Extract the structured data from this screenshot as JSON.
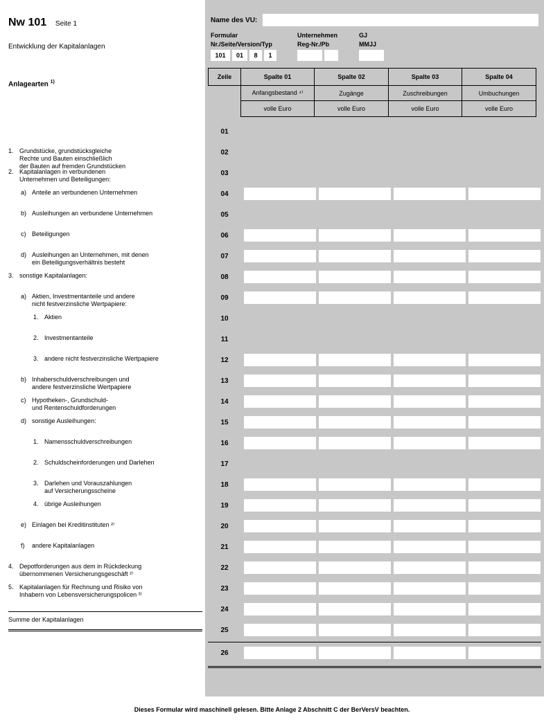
{
  "title": {
    "nw": "Nw 101",
    "seite": "Seite 1"
  },
  "subtitle": "Entwicklung der Kapitalanlagen",
  "anlagearten_label": "Anlagearten",
  "anlagearten_sup": "1)",
  "header": {
    "vu_label": "Name des VU:",
    "formular_label": "Formular",
    "formular_sub": "Nr./Seite/Version/Typ",
    "formular_vals": [
      "101",
      "01",
      "8",
      "1"
    ],
    "unternehmen_label": "Unternehmen",
    "unternehmen_sub": "Reg-Nr./Pb",
    "gj_label": "GJ",
    "gj_sub": "MMJJ"
  },
  "columns": {
    "zeile": "Zeile",
    "sp": [
      "Spalte 01",
      "Spalte 02",
      "Spalte 03",
      "Spalte 04"
    ],
    "sub": [
      "Anfangsbestand ⁴⁾",
      "Zugänge",
      "Zuschreibungen",
      "Umbuchungen"
    ],
    "unit": "volle Euro"
  },
  "rows": [
    {
      "z": "01",
      "blank": true
    },
    {
      "z": "02",
      "blank": true
    },
    {
      "z": "03",
      "blank": true
    },
    {
      "z": "04",
      "blank": false,
      "num": "1.",
      "txt": "Grundstücke, grundstücksgleiche\nRechte und Bauten einschließlich\nder Bauten auf fremden Grundstücken",
      "lvl": 0
    },
    {
      "z": "05",
      "blank": true,
      "num": "2.",
      "txt": "Kapitalanlagen in verbundenen\nUnternehmen und Beteiligungen:",
      "lvl": 0
    },
    {
      "z": "06",
      "blank": false,
      "num": "a)",
      "txt": "Anteile an verbundenen Unternehmen",
      "lvl": 1
    },
    {
      "z": "07",
      "blank": false,
      "num": "b)",
      "txt": "Ausleihungen an verbundene Unternehmen",
      "lvl": 1
    },
    {
      "z": "08",
      "blank": false,
      "num": "c)",
      "txt": "Beteiligungen",
      "lvl": 1
    },
    {
      "z": "09",
      "blank": false,
      "num": "d)",
      "txt": "Ausleihungen an Unternehmen, mit denen\nein Beteiligungsverhältnis besteht",
      "lvl": 1
    },
    {
      "z": "10",
      "blank": true,
      "num": "3.",
      "txt": "sonstige Kapitalanlagen:",
      "lvl": 0
    },
    {
      "z": "11",
      "blank": true,
      "num": "a)",
      "txt": "Aktien, Investmentanteile und andere\nnicht festverzinsliche Wertpapiere:",
      "lvl": 1
    },
    {
      "z": "12",
      "blank": false,
      "num": "1.",
      "txt": "Aktien",
      "lvl": 2
    },
    {
      "z": "13",
      "blank": false,
      "num": "2.",
      "txt": "Investmentanteile",
      "lvl": 2
    },
    {
      "z": "14",
      "blank": false,
      "num": "3.",
      "txt": "andere nicht festverzinsliche Wertpapiere",
      "lvl": 2
    },
    {
      "z": "15",
      "blank": false,
      "num": "b)",
      "txt": "Inhaberschuldverschreibungen und\nandere festverzinsliche Wertpapiere",
      "lvl": 1
    },
    {
      "z": "16",
      "blank": false,
      "num": "c)",
      "txt": "Hypotheken-, Grundschuld-\nund Rentenschuldforderungen",
      "lvl": 1
    },
    {
      "z": "17",
      "blank": true,
      "num": "d)",
      "txt": "sonstige Ausleihungen:",
      "lvl": 1
    },
    {
      "z": "18",
      "blank": false,
      "num": "1.",
      "txt": "Namensschuldverschreibungen",
      "lvl": 2
    },
    {
      "z": "19",
      "blank": false,
      "num": "2.",
      "txt": "Schuldscheinforderungen und Darlehen",
      "lvl": 2
    },
    {
      "z": "20",
      "blank": false,
      "num": "3.",
      "txt": "Darlehen und Vorauszahlungen\nauf Versicherungsscheine",
      "lvl": 2
    },
    {
      "z": "21",
      "blank": false,
      "num": "4.",
      "txt": "übrige Ausleihungen",
      "lvl": 2
    },
    {
      "z": "22",
      "blank": false,
      "num": "e)",
      "txt": "Einlagen bei Kreditinstituten ²⁾",
      "lvl": 1
    },
    {
      "z": "23",
      "blank": false,
      "num": "f)",
      "txt": "andere Kapitalanlagen",
      "lvl": 1
    },
    {
      "z": "24",
      "blank": false,
      "num": "4.",
      "txt": "Depotforderungen aus dem in Rückdeckung\nübernommenen Versicherungsgeschäft ²⁾",
      "lvl": 0
    },
    {
      "z": "25",
      "blank": false,
      "num": "5.",
      "txt": "Kapitalanlagen für Rechnung und Risiko von\nInhabern von Lebensversicherungspolicen ³⁾",
      "lvl": 0
    }
  ],
  "summe": {
    "z": "26",
    "label": "Summe der Kapitalanlagen"
  },
  "footer": "Dieses Formular wird maschinell gelesen. Bitte Anlage 2 Abschnitt C der BerVersV beachten."
}
